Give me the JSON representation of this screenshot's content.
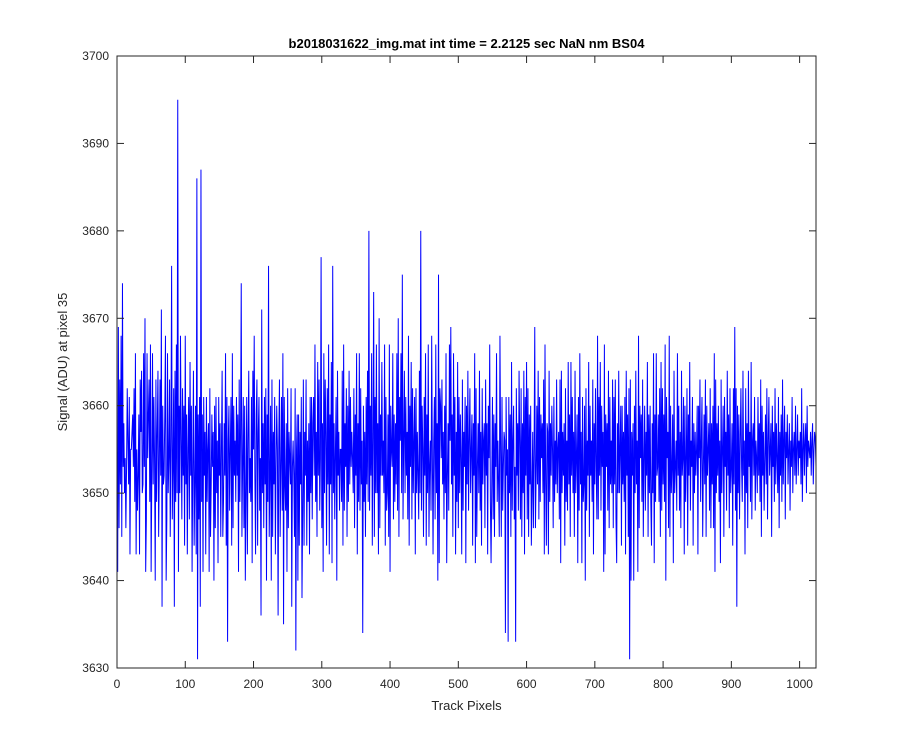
{
  "colors": {
    "background": "#ffffff",
    "axes": "#262626",
    "series": "#0000ff"
  },
  "chart_data": {
    "type": "line",
    "title": "b2018031622_img.mat int time = 2.2125 sec  NaN nm BS04",
    "xlabel": "Track Pixels",
    "ylabel": "Signal (ADU) at pixel 35",
    "xlim": [
      0,
      1024
    ],
    "ylim": [
      3630,
      3700
    ],
    "xticks": [
      0,
      100,
      200,
      300,
      400,
      500,
      600,
      700,
      800,
      900,
      1000
    ],
    "yticks": [
      3630,
      3640,
      3650,
      3660,
      3670,
      3680,
      3690,
      3700
    ],
    "grid": false,
    "legend": "none",
    "series": [
      {
        "color": "#0000ff",
        "x_start": 1,
        "x_step": 1,
        "values": [
          3641,
          3669,
          3646,
          3663,
          3651,
          3668,
          3645,
          3674,
          3653,
          3658,
          3650,
          3654,
          3646,
          3653,
          3662,
          3656,
          3651,
          3661,
          3643,
          3655,
          3655,
          3657,
          3659,
          3653,
          3662,
          3649,
          3666,
          3643,
          3655,
          3648,
          3652,
          3659,
          3643,
          3663,
          3657,
          3664,
          3650,
          3651,
          3666,
          3653,
          3670,
          3641,
          3647,
          3666,
          3654,
          3659,
          3663,
          3649,
          3667,
          3641,
          3652,
          3666,
          3651,
          3661,
          3654,
          3640,
          3663,
          3649,
          3657,
          3664,
          3645,
          3653,
          3663,
          3652,
          3671,
          3637,
          3660,
          3651,
          3652,
          3659,
          3668,
          3640,
          3647,
          3666,
          3650,
          3654,
          3663,
          3645,
          3656,
          3676,
          3647,
          3653,
          3662,
          3637,
          3664,
          3649,
          3667,
          3650,
          3695,
          3641,
          3660,
          3650,
          3668,
          3656,
          3647,
          3662,
          3652,
          3660,
          3644,
          3668,
          3651,
          3659,
          3643,
          3655,
          3661,
          3647,
          3665,
          3652,
          3660,
          3641,
          3653,
          3664,
          3644,
          3651,
          3660,
          3643,
          3686,
          3631,
          3659,
          3647,
          3661,
          3637,
          3687,
          3649,
          3659,
          3641,
          3661,
          3652,
          3657,
          3643,
          3661,
          3649,
          3655,
          3658,
          3641,
          3662,
          3645,
          3651,
          3659,
          3653,
          3657,
          3640,
          3660,
          3646,
          3661,
          3650,
          3656,
          3642,
          3661,
          3652,
          3658,
          3645,
          3655,
          3664,
          3645,
          3649,
          3658,
          3652,
          3666,
          3644,
          3661,
          3633,
          3656,
          3660,
          3648,
          3655,
          3661,
          3644,
          3666,
          3646,
          3660,
          3652,
          3656,
          3649,
          3661,
          3652,
          3659,
          3641,
          3663,
          3649,
          3657,
          3674,
          3645,
          3653,
          3661,
          3646,
          3660,
          3640,
          3650,
          3661,
          3643,
          3656,
          3664,
          3650,
          3654,
          3649,
          3661,
          3642,
          3664,
          3655,
          3668,
          3652,
          3643,
          3659,
          3663,
          3644,
          3657,
          3661,
          3648,
          3654,
          3636,
          3671,
          3650,
          3658,
          3646,
          3661,
          3651,
          3662,
          3640,
          3659,
          3649,
          3676,
          3645,
          3652,
          3660,
          3640,
          3663,
          3645,
          3657,
          3651,
          3661,
          3643,
          3653,
          3660,
          3655,
          3636,
          3656,
          3663,
          3645,
          3653,
          3661,
          3648,
          3666,
          3635,
          3661,
          3651,
          3648,
          3658,
          3641,
          3662,
          3646,
          3657,
          3654,
          3651,
          3662,
          3637,
          3653,
          3656,
          3652,
          3645,
          3662,
          3632,
          3655,
          3659,
          3640,
          3659,
          3644,
          3657,
          3651,
          3661,
          3638,
          3648,
          3663,
          3644,
          3657,
          3652,
          3663,
          3644,
          3656,
          3649,
          3658,
          3643,
          3661,
          3650,
          3661,
          3647,
          3658,
          3661,
          3652,
          3667,
          3649,
          3657,
          3645,
          3665,
          3652,
          3663,
          3648,
          3654,
          3677,
          3646,
          3658,
          3641,
          3666,
          3650,
          3663,
          3657,
          3644,
          3662,
          3651,
          3667,
          3643,
          3659,
          3651,
          3665,
          3642,
          3676,
          3650,
          3658,
          3647,
          3655,
          3661,
          3640,
          3664,
          3652,
          3657,
          3648,
          3655,
          3655,
          3649,
          3664,
          3644,
          3667,
          3648,
          3658,
          3653,
          3662,
          3645,
          3660,
          3649,
          3664,
          3651,
          3661,
          3653,
          3657,
          3654,
          3650,
          3662,
          3646,
          3659,
          3652,
          3666,
          3643,
          3658,
          3649,
          3666,
          3648,
          3662,
          3651,
          3656,
          3634,
          3660,
          3649,
          3657,
          3645,
          3661,
          3651,
          3664,
          3649,
          3680,
          3648,
          3660,
          3652,
          3666,
          3644,
          3656,
          3673,
          3645,
          3661,
          3650,
          3667,
          3650,
          3658,
          3643,
          3670,
          3646,
          3659,
          3652,
          3665,
          3652,
          3656,
          3650,
          3667,
          3644,
          3661,
          3648,
          3650,
          3659,
          3645,
          3667,
          3641,
          3660,
          3655,
          3653,
          3666,
          3647,
          3659,
          3649,
          3658,
          3651,
          3666,
          3648,
          3670,
          3645,
          3661,
          3656,
          3666,
          3650,
          3675,
          3647,
          3656,
          3664,
          3650,
          3661,
          3652,
          3657,
          3647,
          3668,
          3644,
          3660,
          3653,
          3665,
          3647,
          3662,
          3650,
          3656,
          3661,
          3643,
          3662,
          3650,
          3657,
          3652,
          3647,
          3664,
          3650,
          3680,
          3648,
          3660,
          3655,
          3645,
          3661,
          3652,
          3666,
          3644,
          3659,
          3650,
          3667,
          3645,
          3653,
          3656,
          3648,
          3668,
          3654,
          3643,
          3656,
          3661,
          3647,
          3667,
          3650,
          3658,
          3640,
          3675,
          3642,
          3662,
          3660,
          3654,
          3663,
          3651,
          3657,
          3647,
          3660,
          3650,
          3666,
          3642,
          3652,
          3658,
          3648,
          3667,
          3656,
          3669,
          3651,
          3659,
          3645,
          3666,
          3652,
          3661,
          3643,
          3657,
          3649,
          3665,
          3646,
          3661,
          3650,
          3659,
          3654,
          3643,
          3663,
          3648,
          3657,
          3653,
          3661,
          3642,
          3660,
          3651,
          3664,
          3648,
          3656,
          3662,
          3650,
          3655,
          3659,
          3644,
          3658,
          3652,
          3666,
          3642,
          3662,
          3645,
          3653,
          3658,
          3650,
          3664,
          3648,
          3657,
          3644,
          3662,
          3651,
          3656,
          3658,
          3646,
          3663,
          3652,
          3658,
          3643,
          3660,
          3654,
          3667,
          3649,
          3642,
          3651,
          3661,
          3647,
          3659,
          3645,
          3658,
          3653,
          3666,
          3649,
          3656,
          3651,
          3645,
          3668,
          3655,
          3645,
          3661,
          3648,
          3653,
          3657,
          3656,
          3634,
          3661,
          3652,
          3655,
          3633,
          3661,
          3650,
          3659,
          3645,
          3665,
          3648,
          3656,
          3660,
          3647,
          3653,
          3633,
          3662,
          3652,
          3658,
          3648,
          3664,
          3656,
          3647,
          3662,
          3645,
          3658,
          3650,
          3664,
          3643,
          3661,
          3652,
          3665,
          3647,
          3662,
          3645,
          3659,
          3651,
          3660,
          3644,
          3650,
          3657,
          3646,
          3655,
          3669,
          3646,
          3652,
          3660,
          3651,
          3664,
          3647,
          3661,
          3649,
          3659,
          3654,
          3658,
          3650,
          3663,
          3643,
          3667,
          3651,
          3644,
          3658,
          3657,
          3643,
          3664,
          3649,
          3658,
          3652,
          3660,
          3655,
          3646,
          3661,
          3649,
          3656,
          3651,
          3663,
          3650,
          3655,
          3657,
          3647,
          3663,
          3642,
          3664,
          3650,
          3657,
          3652,
          3658,
          3644,
          3662,
          3649,
          3656,
          3648,
          3665,
          3651,
          3659,
          3645,
          3665,
          3652,
          3661,
          3650,
          3657,
          3645,
          3664,
          3650,
          3654,
          3659,
          3642,
          3661,
          3648,
          3666,
          3651,
          3657,
          3642,
          3661,
          3649,
          3651,
          3660,
          3640,
          3662,
          3648,
          3656,
          3652,
          3665,
          3645,
          3660,
          3652,
          3656,
          3649,
          3663,
          3643,
          3658,
          3651,
          3662,
          3653,
          3647,
          3668,
          3647,
          3661,
          3652,
          3665,
          3648,
          3660,
          3653,
          3657,
          3641,
          3667,
          3643,
          3659,
          3653,
          3658,
          3648,
          3664,
          3646,
          3661,
          3651,
          3656,
          3650,
          3663,
          3646,
          3661,
          3651,
          3663,
          3647,
          3642,
          3658,
          3650,
          3664,
          3650,
          3655,
          3660,
          3644,
          3660,
          3651,
          3657,
          3649,
          3661,
          3643,
          3664,
          3652,
          3659,
          3645,
          3662,
          3631,
          3663,
          3640,
          3657,
          3652,
          3658,
          3640,
          3660,
          3650,
          3664,
          3651,
          3656,
          3641,
          3668,
          3646,
          3660,
          3654,
          3659,
          3649,
          3663,
          3645,
          3654,
          3660,
          3648,
          3657,
          3652,
          3665,
          3645,
          3659,
          3650,
          3660,
          3649,
          3644,
          3658,
          3650,
          3666,
          3642,
          3659,
          3649,
          3666,
          3652,
          3653,
          3659,
          3649,
          3662,
          3645,
          3665,
          3648,
          3662,
          3651,
          3659,
          3649,
          3667,
          3640,
          3661,
          3654,
          3657,
          3646,
          3668,
          3645,
          3660,
          3650,
          3653,
          3659,
          3642,
          3664,
          3650,
          3653,
          3656,
          3648,
          3666,
          3652,
          3660,
          3648,
          3657,
          3646,
          3664,
          3652,
          3654,
          3661,
          3643,
          3660,
          3649,
          3654,
          3662,
          3644,
          3659,
          3652,
          3665,
          3648,
          3656,
          3653,
          3661,
          3644,
          3658,
          3650,
          3657,
          3652,
          3655,
          3660,
          3643,
          3660,
          3654,
          3663,
          3649,
          3656,
          3661,
          3645,
          3653,
          3659,
          3651,
          3663,
          3645,
          3660,
          3652,
          3655,
          3658,
          3648,
          3662,
          3646,
          3658,
          3651,
          3660,
          3646,
          3666,
          3641,
          3663,
          3650,
          3658,
          3652,
          3660,
          3649,
          3656,
          3642,
          3663,
          3650,
          3655,
          3660,
          3645,
          3661,
          3653,
          3657,
          3648,
          3664,
          3652,
          3659,
          3646,
          3662,
          3650,
          3653,
          3658,
          3644,
          3662,
          3651,
          3669,
          3648,
          3662,
          3637,
          3660,
          3650,
          3659,
          3647,
          3656,
          3662,
          3653,
          3649,
          3664,
          3652,
          3656,
          3643,
          3662,
          3650,
          3658,
          3646,
          3664,
          3653,
          3657,
          3649,
          3665,
          3647,
          3656,
          3658,
          3652,
          3661,
          3648,
          3656,
          3654,
          3650,
          3661,
          3652,
          3658,
          3649,
          3663,
          3645,
          3660,
          3652,
          3657,
          3648,
          3654,
          3659,
          3651,
          3662,
          3647,
          3656,
          3661,
          3652,
          3655,
          3658,
          3645,
          3660,
          3653,
          3657,
          3649,
          3662,
          3651,
          3658,
          3654,
          3650,
          3661,
          3646,
          3657,
          3652,
          3659,
          3649,
          3663,
          3651,
          3656,
          3660,
          3647,
          3657,
          3654,
          3659,
          3651,
          3655,
          3658,
          3648,
          3656,
          3653,
          3661,
          3650,
          3655,
          3657,
          3652,
          3660,
          3651,
          3655,
          3659,
          3652,
          3656,
          3654,
          3657,
          3651,
          3662,
          3649,
          3655,
          3658,
          3652,
          3656,
          3658,
          3650,
          3660,
          3653,
          3656,
          3655,
          3654,
          3657,
          3652,
          3656,
          3658,
          3651,
          3655,
          3657,
          3656,
          3653,
          3655,
          3660,
          3652,
          3656,
          3654,
          3657,
          3653,
          3656,
          3655,
          3654,
          3656,
          3653,
          3655,
          3657,
          3654,
          3655,
          3656,
          3654,
          3655,
          3656,
          3655,
          3654,
          3656,
          3655
        ]
      }
    ]
  }
}
